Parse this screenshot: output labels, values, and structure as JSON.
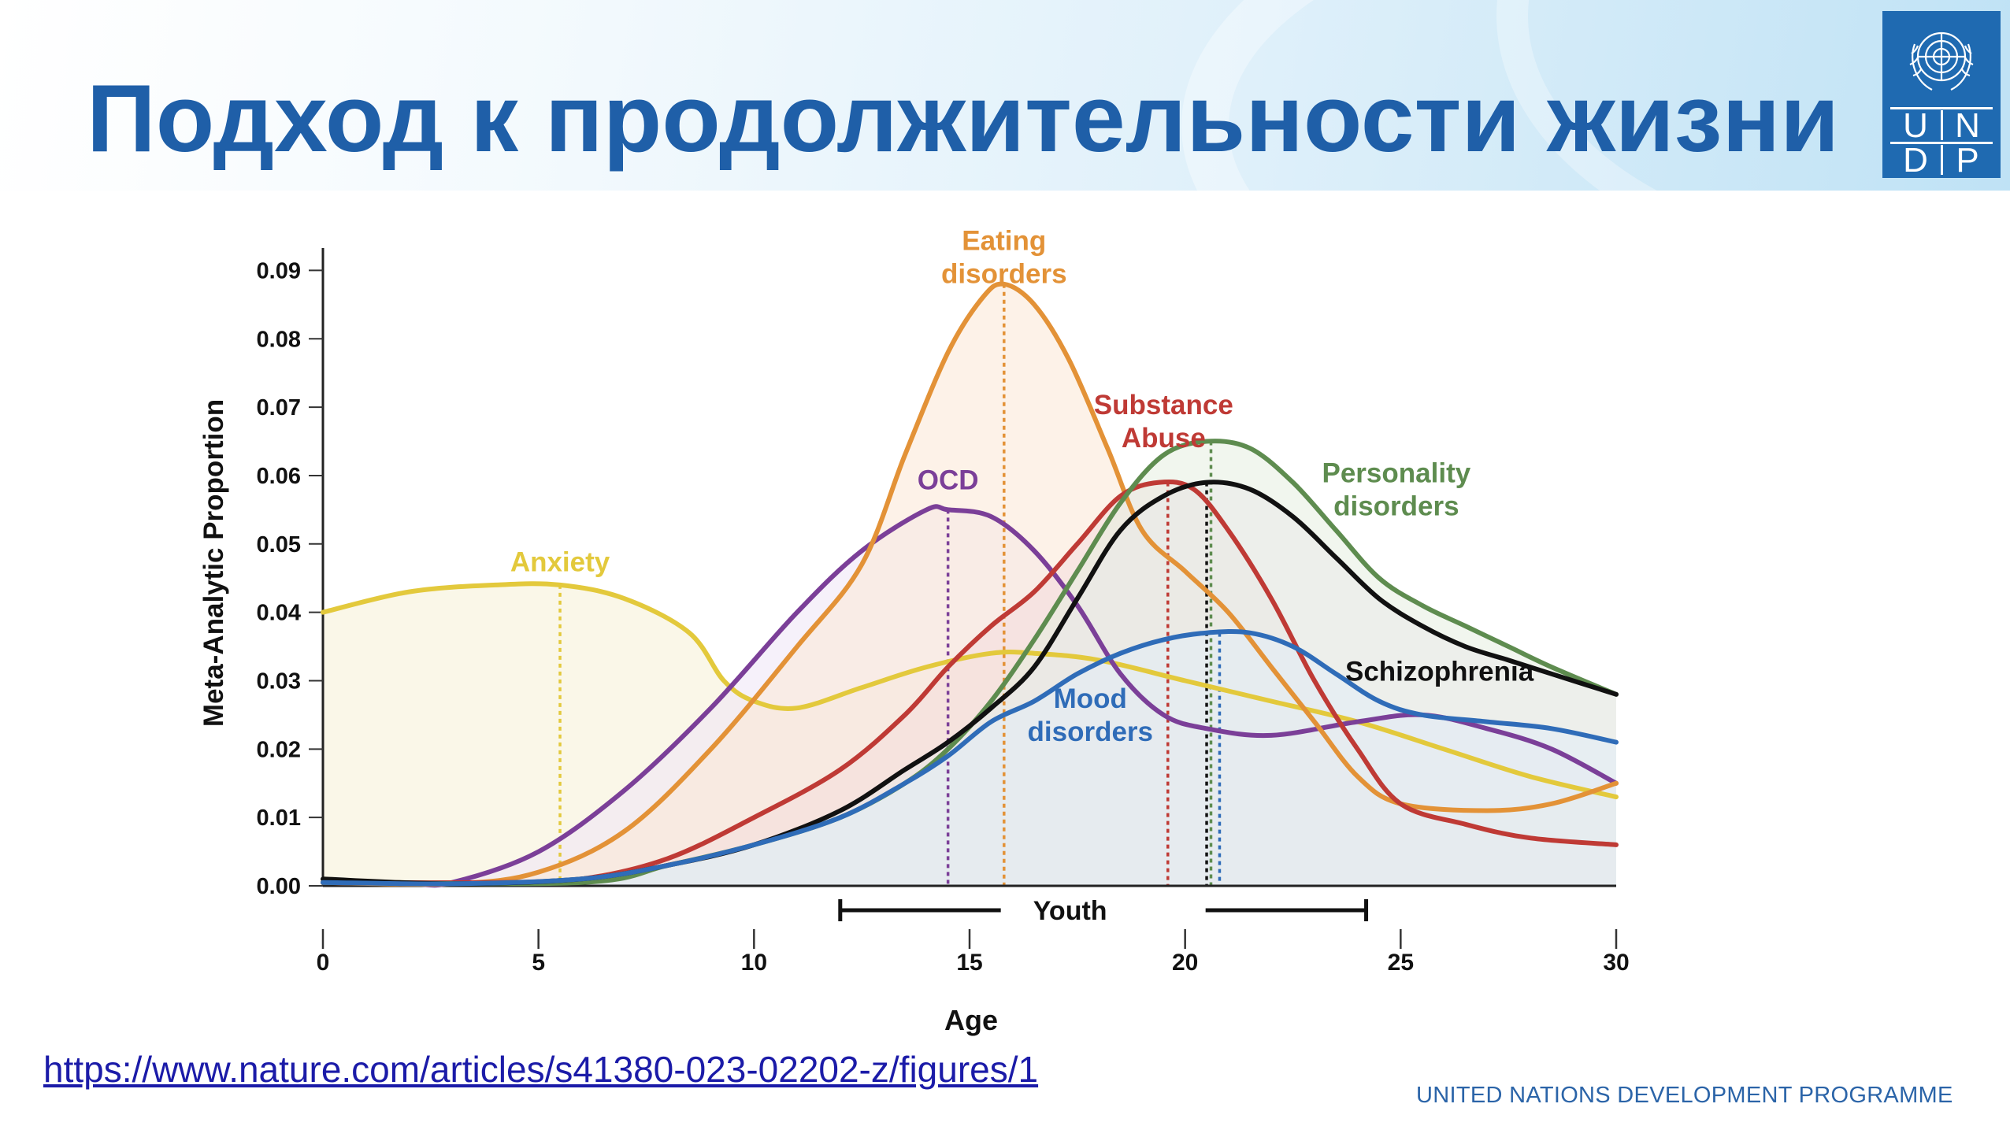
{
  "slide": {
    "title": "Подход к продолжительности жизни",
    "source_link": "https://www.nature.com/articles/s41380-023-02202-z/figures/1",
    "footer": "UNITED NATIONS DEVELOPMENT PROGRAMME",
    "logo": {
      "letters": [
        "U",
        "N",
        "D",
        "P"
      ],
      "emblem": "un-emblem-icon",
      "color": "#1f6ab1"
    },
    "title_color": "#1f5fa8"
  },
  "chart_data": {
    "type": "line",
    "xlabel": "Age",
    "ylabel": "Meta-Analytic Proportion",
    "xlim": [
      0,
      30
    ],
    "ylim": [
      0,
      0.095
    ],
    "xticks": [
      "0",
      "5",
      "10",
      "15",
      "20",
      "25",
      "30"
    ],
    "yticks": [
      "0.00",
      "0.01",
      "0.02",
      "0.03",
      "0.04",
      "0.05",
      "0.06",
      "0.07",
      "0.08",
      "0.09"
    ],
    "grid": false,
    "bracket": {
      "label": "Youth",
      "start": 12,
      "end": 24.2
    },
    "series": [
      {
        "name": "Anxiety",
        "color": "#e3c93c",
        "fill": "#f5f1d6",
        "peak_age": 5.5,
        "peak_value": 0.044,
        "points": [
          [
            0,
            0.04
          ],
          [
            2,
            0.043
          ],
          [
            4,
            0.044
          ],
          [
            5.5,
            0.044
          ],
          [
            7,
            0.042
          ],
          [
            8.5,
            0.037
          ],
          [
            9.3,
            0.03
          ],
          [
            10,
            0.027
          ],
          [
            11,
            0.026
          ],
          [
            12.5,
            0.029
          ],
          [
            14,
            0.032
          ],
          [
            15.5,
            0.034
          ],
          [
            16.5,
            0.034
          ],
          [
            18,
            0.033
          ],
          [
            20,
            0.03
          ],
          [
            22,
            0.027
          ],
          [
            24,
            0.024
          ],
          [
            26,
            0.02
          ],
          [
            28,
            0.016
          ],
          [
            30,
            0.013
          ]
        ]
      },
      {
        "name": "OCD",
        "color": "#7b3f98",
        "fill": "#efe6f5",
        "peak_age": 14.5,
        "peak_value": 0.055,
        "points": [
          [
            0,
            0.0005
          ],
          [
            2,
            0.0003
          ],
          [
            3,
            0.0005
          ],
          [
            5,
            0.005
          ],
          [
            7,
            0.014
          ],
          [
            9,
            0.026
          ],
          [
            11,
            0.04
          ],
          [
            12.5,
            0.049
          ],
          [
            14,
            0.055
          ],
          [
            14.5,
            0.055
          ],
          [
            15.5,
            0.054
          ],
          [
            16.5,
            0.049
          ],
          [
            17.5,
            0.041
          ],
          [
            18.5,
            0.031
          ],
          [
            19.5,
            0.025
          ],
          [
            20.5,
            0.023
          ],
          [
            22,
            0.022
          ],
          [
            24,
            0.024
          ],
          [
            25.5,
            0.025
          ],
          [
            27,
            0.023
          ],
          [
            28.5,
            0.02
          ],
          [
            30,
            0.015
          ]
        ]
      },
      {
        "name": "Eating disorders",
        "color": "#e39237",
        "fill": "#fbe8d5",
        "peak_age": 15.8,
        "peak_value": 0.088,
        "points": [
          [
            0,
            0.0005
          ],
          [
            3,
            0.0003
          ],
          [
            5,
            0.002
          ],
          [
            7,
            0.008
          ],
          [
            9,
            0.02
          ],
          [
            11,
            0.035
          ],
          [
            12.5,
            0.047
          ],
          [
            13.5,
            0.063
          ],
          [
            14.5,
            0.078
          ],
          [
            15.3,
            0.086
          ],
          [
            15.8,
            0.088
          ],
          [
            16.5,
            0.085
          ],
          [
            17.3,
            0.077
          ],
          [
            18.2,
            0.064
          ],
          [
            19,
            0.052
          ],
          [
            20,
            0.046
          ],
          [
            21,
            0.04
          ],
          [
            22,
            0.032
          ],
          [
            23,
            0.024
          ],
          [
            24,
            0.016
          ],
          [
            25,
            0.012
          ],
          [
            27,
            0.011
          ],
          [
            28.5,
            0.012
          ],
          [
            30,
            0.015
          ]
        ]
      },
      {
        "name": "Substance Abuse",
        "color": "#bf3a35",
        "fill": "#f4dddd",
        "peak_age": 19.6,
        "peak_value": 0.059,
        "points": [
          [
            0,
            0.0005
          ],
          [
            4,
            0.0005
          ],
          [
            6,
            0.001
          ],
          [
            8,
            0.004
          ],
          [
            10,
            0.01
          ],
          [
            12,
            0.017
          ],
          [
            13.5,
            0.025
          ],
          [
            14.5,
            0.032
          ],
          [
            15.5,
            0.038
          ],
          [
            16.5,
            0.043
          ],
          [
            17.5,
            0.05
          ],
          [
            18.5,
            0.057
          ],
          [
            19.4,
            0.059
          ],
          [
            20.2,
            0.058
          ],
          [
            21,
            0.052
          ],
          [
            22,
            0.042
          ],
          [
            23,
            0.03
          ],
          [
            24,
            0.02
          ],
          [
            25,
            0.012
          ],
          [
            26.5,
            0.009
          ],
          [
            28,
            0.007
          ],
          [
            30,
            0.006
          ]
        ]
      },
      {
        "name": "Personality disorders",
        "color": "#5e8c4f",
        "fill": "#e6efe0",
        "peak_age": 20.6,
        "peak_value": 0.065,
        "points": [
          [
            0,
            0.0005
          ],
          [
            6,
            0.0005
          ],
          [
            8,
            0.003
          ],
          [
            10,
            0.006
          ],
          [
            12,
            0.01
          ],
          [
            13.5,
            0.015
          ],
          [
            14.5,
            0.02
          ],
          [
            15.5,
            0.027
          ],
          [
            16.5,
            0.036
          ],
          [
            17.5,
            0.046
          ],
          [
            18.5,
            0.056
          ],
          [
            19.5,
            0.063
          ],
          [
            20.5,
            0.065
          ],
          [
            21.5,
            0.064
          ],
          [
            22.5,
            0.059
          ],
          [
            23.5,
            0.052
          ],
          [
            24.5,
            0.045
          ],
          [
            25.5,
            0.041
          ],
          [
            26.5,
            0.038
          ],
          [
            27.5,
            0.035
          ],
          [
            28.5,
            0.032
          ],
          [
            30,
            0.028
          ]
        ]
      },
      {
        "name": "Schizophrenia",
        "color": "#111111",
        "fill": "#e9e9e9",
        "peak_age": 20.5,
        "peak_value": 0.059,
        "points": [
          [
            0,
            0.001
          ],
          [
            3,
            0.0003
          ],
          [
            6,
            0.001
          ],
          [
            8,
            0.003
          ],
          [
            10,
            0.006
          ],
          [
            12,
            0.011
          ],
          [
            13.5,
            0.017
          ],
          [
            14.5,
            0.021
          ],
          [
            15.5,
            0.026
          ],
          [
            16.5,
            0.032
          ],
          [
            17.5,
            0.042
          ],
          [
            18.5,
            0.052
          ],
          [
            19.5,
            0.057
          ],
          [
            20.5,
            0.059
          ],
          [
            21.5,
            0.058
          ],
          [
            22.5,
            0.054
          ],
          [
            23.5,
            0.048
          ],
          [
            24.5,
            0.042
          ],
          [
            25.5,
            0.038
          ],
          [
            26.5,
            0.035
          ],
          [
            27.5,
            0.033
          ],
          [
            28.5,
            0.031
          ],
          [
            30,
            0.028
          ]
        ]
      },
      {
        "name": "Mood disorders",
        "color": "#2f6cb8",
        "fill": "#e2edf8",
        "peak_age": 20.8,
        "peak_value": 0.037,
        "points": [
          [
            0,
            0.0005
          ],
          [
            3,
            0.0003
          ],
          [
            6,
            0.001
          ],
          [
            8,
            0.003
          ],
          [
            10,
            0.006
          ],
          [
            12,
            0.01
          ],
          [
            13.5,
            0.015
          ],
          [
            14.5,
            0.019
          ],
          [
            15.5,
            0.024
          ],
          [
            16.5,
            0.027
          ],
          [
            17.5,
            0.031
          ],
          [
            18.5,
            0.034
          ],
          [
            19.5,
            0.036
          ],
          [
            20.5,
            0.037
          ],
          [
            21.5,
            0.037
          ],
          [
            22.5,
            0.035
          ],
          [
            23.5,
            0.031
          ],
          [
            24.5,
            0.027
          ],
          [
            25.5,
            0.025
          ],
          [
            27,
            0.024
          ],
          [
            28.5,
            0.023
          ],
          [
            30,
            0.021
          ]
        ]
      }
    ],
    "annotations": [
      {
        "text": [
          "Anxiety"
        ],
        "series": "Anxiety",
        "x": 5.5,
        "y": 0.046
      },
      {
        "text": [
          "OCD"
        ],
        "series": "OCD",
        "x": 14.5,
        "y": 0.058
      },
      {
        "text": [
          "Eating",
          "disorders"
        ],
        "series": "Eating disorders",
        "x": 15.8,
        "y": 0.093
      },
      {
        "text": [
          "Substance",
          "Abuse"
        ],
        "series": "Substance Abuse",
        "x": 19.5,
        "y": 0.069
      },
      {
        "text": [
          "Personality",
          "disorders"
        ],
        "series": "Personality disorders",
        "x": 24.9,
        "y": 0.059
      },
      {
        "text": [
          "Schizophrenia"
        ],
        "series": "Schizophrenia",
        "x": 25.9,
        "y": 0.03
      },
      {
        "text": [
          "Mood",
          "disorders"
        ],
        "series": "Mood disorders",
        "x": 17.8,
        "y": 0.026
      }
    ]
  }
}
